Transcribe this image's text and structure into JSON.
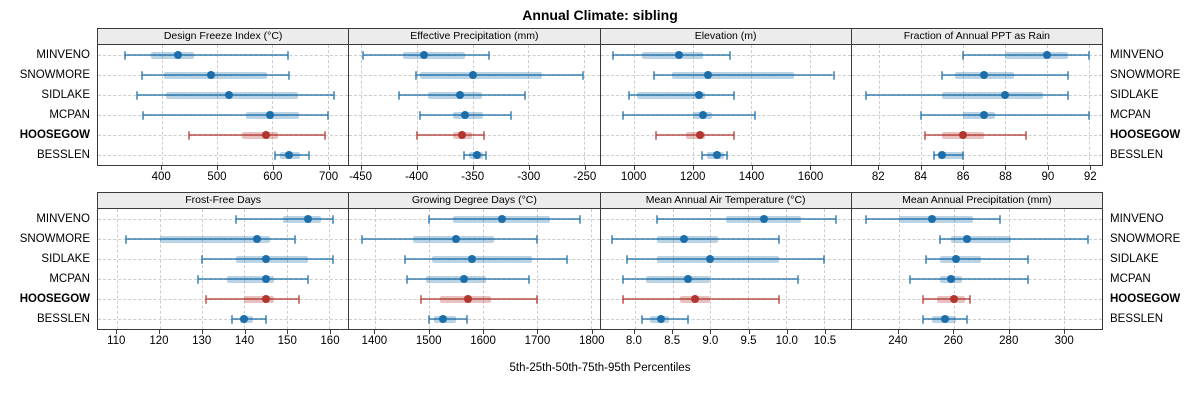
{
  "title": "Annual Climate: sibling",
  "caption": "5th-25th-50th-75th-95th Percentiles",
  "chart_data": {
    "type": "dot-whisker",
    "orientation": "horizontal",
    "layout": "2 rows x 4 columns trellis, per-panel x scales, grid on",
    "percentiles": [
      "5th",
      "25th",
      "50th",
      "75th",
      "95th"
    ],
    "stations": [
      "MINVENO",
      "SNOWMORE",
      "SIDLAKE",
      "MCPAN",
      "HOOSEGOW",
      "BESSLEN"
    ],
    "highlight_station": "HOOSEGOW",
    "colors": {
      "series": "#1b6ea9",
      "series_line": "rgba(27,110,169,0.65)",
      "series_band": "rgba(27,110,169,0.30)",
      "highlight": "#b23530",
      "highlight_line": "rgba(178,53,48,0.65)",
      "highlight_band": "rgba(178,53,48,0.30)",
      "strip_bg": "#ececec",
      "panel_border": "#3a3a3a",
      "gridline": "#cdcdcd"
    },
    "panels": [
      {
        "row": 0,
        "title": "Design Freeze Index (°C)",
        "xlim": [
          285,
          737
        ],
        "ticks": {
          "values": [
            400,
            500,
            600,
            700
          ],
          "labels": [
            "400",
            "500",
            "600",
            "700"
          ]
        },
        "values": {
          "MINVENO": [
            333,
            380,
            429,
            458,
            629
          ],
          "SNOWMORE": [
            365,
            405,
            490,
            590,
            630
          ],
          "SIDLAKE": [
            356,
            408,
            522,
            646,
            711
          ],
          "MCPAN": [
            367,
            553,
            596,
            648,
            701
          ],
          "HOOSEGOW": [
            450,
            545,
            589,
            611,
            695
          ],
          "BESSLEN": [
            604,
            614,
            630,
            650,
            666
          ]
        }
      },
      {
        "row": 0,
        "title": "Effective Precipitation (mm)",
        "xlim": [
          -461,
          -236
        ],
        "ticks": {
          "values": [
            -450,
            -400,
            -350,
            -300,
            -250
          ],
          "labels": [
            "-450",
            "-400",
            "-350",
            "-300",
            "-250"
          ]
        },
        "values": {
          "MINVENO": [
            -449,
            -413,
            -394,
            -357,
            -335
          ],
          "SNOWMORE": [
            -401,
            -397,
            -350,
            -288,
            -251
          ],
          "SIDLAKE": [
            -416,
            -390,
            -361,
            -342,
            -303
          ],
          "MCPAN": [
            -397,
            -368,
            -357,
            -341,
            -316
          ],
          "HOOSEGOW": [
            -400,
            -368,
            -360,
            -351,
            -340
          ],
          "BESSLEN": [
            -358,
            -353,
            -346,
            -341,
            -338
          ]
        }
      },
      {
        "row": 0,
        "title": "Elevation (m)",
        "xlim": [
          884,
          1740
        ],
        "ticks": {
          "values": [
            1000,
            1200,
            1400,
            1600
          ],
          "labels": [
            "1000",
            "1200",
            "1400",
            "1600"
          ]
        },
        "values": {
          "MINVENO": [
            928,
            1025,
            1151,
            1235,
            1327
          ],
          "SNOWMORE": [
            1066,
            1130,
            1252,
            1546,
            1681
          ],
          "SIDLAKE": [
            983,
            1010,
            1220,
            1243,
            1339
          ],
          "MCPAN": [
            961,
            1199,
            1234,
            1266,
            1414
          ],
          "HOOSEGOW": [
            1075,
            1176,
            1223,
            1241,
            1339
          ],
          "BESSLEN": [
            1230,
            1249,
            1284,
            1306,
            1318
          ]
        }
      },
      {
        "row": 0,
        "title": "Fraction of Annual PPT as Rain",
        "xlim": [
          80.7,
          92.6
        ],
        "ticks": {
          "values": [
            82,
            84,
            86,
            88,
            90,
            92
          ],
          "labels": [
            "82",
            "84",
            "86",
            "88",
            "90",
            "92"
          ]
        },
        "values": {
          "MINVENO": [
            86,
            88,
            90,
            91,
            92
          ],
          "SNOWMORE": [
            85,
            85.6,
            87,
            88.4,
            91
          ],
          "SIDLAKE": [
            81.4,
            85,
            88,
            89.8,
            91
          ],
          "MCPAN": [
            84,
            86,
            87,
            87.5,
            92
          ],
          "HOOSEGOW": [
            84.2,
            85,
            86,
            87,
            89
          ],
          "BESSLEN": [
            84.6,
            84.8,
            85,
            86,
            86
          ]
        }
      },
      {
        "row": 1,
        "title": "Frost-Free Days",
        "xlim": [
          105.5,
          164.5
        ],
        "ticks": {
          "values": [
            110,
            120,
            130,
            140,
            150,
            160
          ],
          "labels": [
            "110",
            "120",
            "130",
            "140",
            "150",
            "160"
          ]
        },
        "values": {
          "MINVENO": [
            138,
            149,
            155,
            158,
            161
          ],
          "SNOWMORE": [
            112,
            120,
            143,
            146,
            152
          ],
          "SIDLAKE": [
            130,
            138,
            145,
            155,
            161
          ],
          "MCPAN": [
            129,
            136,
            145,
            147,
            155
          ],
          "HOOSEGOW": [
            131,
            140,
            145,
            147,
            153
          ],
          "BESSLEN": [
            137,
            139,
            140,
            142,
            145
          ]
        }
      },
      {
        "row": 1,
        "title": "Growing Degree Days (°C)",
        "xlim": [
          1352,
          1816
        ],
        "ticks": {
          "values": [
            1400,
            1500,
            1600,
            1700,
            1800
          ],
          "labels": [
            "1400",
            "1500",
            "1600",
            "1700",
            "1800"
          ]
        },
        "values": {
          "MINVENO": [
            1500,
            1545,
            1635,
            1725,
            1780
          ],
          "SNOWMORE": [
            1375,
            1470,
            1550,
            1620,
            1700
          ],
          "SIDLAKE": [
            1455,
            1505,
            1580,
            1690,
            1755
          ],
          "MCPAN": [
            1460,
            1495,
            1565,
            1605,
            1685
          ],
          "HOOSEGOW": [
            1485,
            1520,
            1572,
            1615,
            1700
          ],
          "BESSLEN": [
            1500,
            1510,
            1525,
            1550,
            1570
          ]
        }
      },
      {
        "row": 1,
        "title": "Mean Annual Air Temperature (°C)",
        "xlim": [
          7.55,
          10.85
        ],
        "ticks": {
          "values": [
            8.0,
            8.5,
            9.0,
            9.5,
            10.0,
            10.5
          ],
          "labels": [
            "8.0",
            "8.5",
            "9.0",
            "9.5",
            "10.0",
            "10.5"
          ]
        },
        "values": {
          "MINVENO": [
            8.3,
            9.2,
            9.7,
            10.2,
            10.65
          ],
          "SNOWMORE": [
            7.7,
            8.3,
            8.65,
            9.1,
            9.9
          ],
          "SIDLAKE": [
            7.9,
            8.3,
            9.0,
            9.9,
            10.5
          ],
          "MCPAN": [
            7.85,
            8.15,
            8.7,
            9.0,
            10.15
          ],
          "HOOSEGOW": [
            7.85,
            8.6,
            8.8,
            9.0,
            9.9
          ],
          "BESSLEN": [
            8.1,
            8.2,
            8.35,
            8.45,
            8.7
          ]
        }
      },
      {
        "row": 1,
        "title": "Mean Annual Precipitation (mm)",
        "xlim": [
          223,
          314
        ],
        "ticks": {
          "values": [
            240,
            260,
            280,
            300
          ],
          "labels": [
            "240",
            "260",
            "280",
            "300"
          ]
        },
        "values": {
          "MINVENO": [
            228,
            240,
            252,
            267,
            277
          ],
          "SNOWMORE": [
            255,
            259,
            265,
            281,
            309
          ],
          "SIDLAKE": [
            250,
            255,
            261,
            270,
            287
          ],
          "MCPAN": [
            244,
            255,
            259,
            263,
            287
          ],
          "HOOSEGOW": [
            249,
            254,
            260,
            264,
            266
          ],
          "BESSLEN": [
            249,
            252,
            257,
            261,
            265
          ]
        }
      }
    ]
  }
}
